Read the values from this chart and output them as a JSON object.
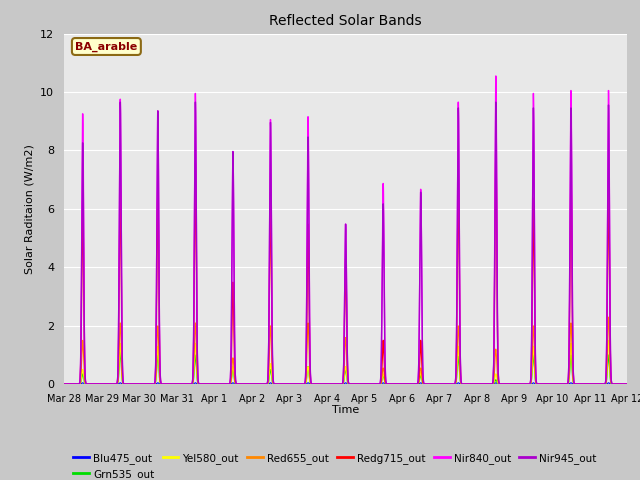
{
  "title": "Reflected Solar Bands",
  "xlabel": "Time",
  "ylabel": "Solar Raditaion (W/m2)",
  "annotation": "BA_arable",
  "ylim": [
    0,
    12
  ],
  "fig_bg": "#c8c8c8",
  "plot_bg": "#e8e8e8",
  "series_order": [
    "Blu475_out",
    "Grn535_out",
    "Yel580_out",
    "Red655_out",
    "Redg715_out",
    "Nir840_out",
    "Nir945_out"
  ],
  "series": {
    "Blu475_out": {
      "color": "#0000ff",
      "lw": 0.8
    },
    "Grn535_out": {
      "color": "#00dd00",
      "lw": 0.8
    },
    "Yel580_out": {
      "color": "#ffff00",
      "lw": 0.8
    },
    "Red655_out": {
      "color": "#ff8800",
      "lw": 0.8
    },
    "Redg715_out": {
      "color": "#ff0000",
      "lw": 1.0
    },
    "Nir840_out": {
      "color": "#ff00ff",
      "lw": 1.0
    },
    "Nir945_out": {
      "color": "#aa00cc",
      "lw": 1.0
    }
  },
  "xtick_labels": [
    "Mar 28",
    "Mar 29",
    "Mar 30",
    "Mar 31",
    "Apr 1",
    "Apr 2",
    "Apr 3",
    "Apr 4",
    "Apr 5",
    "Apr 6",
    "Apr 7",
    "Apr 8",
    "Apr 9",
    "Apr 10",
    "Apr 11",
    "Apr 12"
  ],
  "ytick_labels": [
    "0",
    "2",
    "4",
    "6",
    "8",
    "10",
    "12"
  ],
  "n_days": 15,
  "n_pts_per_day": 200,
  "sigma": 0.025,
  "day_peaks": {
    "Blu475_out": [
      0.04,
      0.04,
      0.04,
      0.04,
      0.04,
      0.04,
      0.04,
      0.04,
      0.04,
      0.04,
      0.04,
      0.04,
      0.04,
      0.04,
      0.04
    ],
    "Grn535_out": [
      0.35,
      1.1,
      1.0,
      1.0,
      0.5,
      0.5,
      0.6,
      0.5,
      0.3,
      0.3,
      0.95,
      0.15,
      1.0,
      1.0,
      1.0
    ],
    "Yel580_out": [
      0.5,
      1.4,
      1.3,
      1.4,
      0.6,
      0.7,
      0.6,
      0.6,
      0.35,
      0.4,
      1.3,
      0.35,
      1.3,
      1.4,
      1.5
    ],
    "Red655_out": [
      1.5,
      2.1,
      2.0,
      2.1,
      0.9,
      2.0,
      2.1,
      1.6,
      0.55,
      0.55,
      2.0,
      1.2,
      2.0,
      2.1,
      2.3
    ],
    "Redg715_out": [
      6.3,
      7.0,
      6.7,
      7.6,
      3.5,
      6.6,
      5.5,
      4.3,
      1.5,
      1.5,
      7.2,
      8.2,
      6.4,
      7.2,
      7.0
    ],
    "Nir840_out": [
      9.3,
      9.8,
      9.4,
      10.0,
      8.0,
      9.1,
      9.2,
      5.5,
      6.9,
      6.7,
      9.7,
      10.6,
      10.0,
      10.1,
      10.1
    ],
    "Nir945_out": [
      8.3,
      9.7,
      9.4,
      9.7,
      8.0,
      9.0,
      8.5,
      5.5,
      6.2,
      6.6,
      9.5,
      9.7,
      9.5,
      9.5,
      9.6
    ]
  }
}
